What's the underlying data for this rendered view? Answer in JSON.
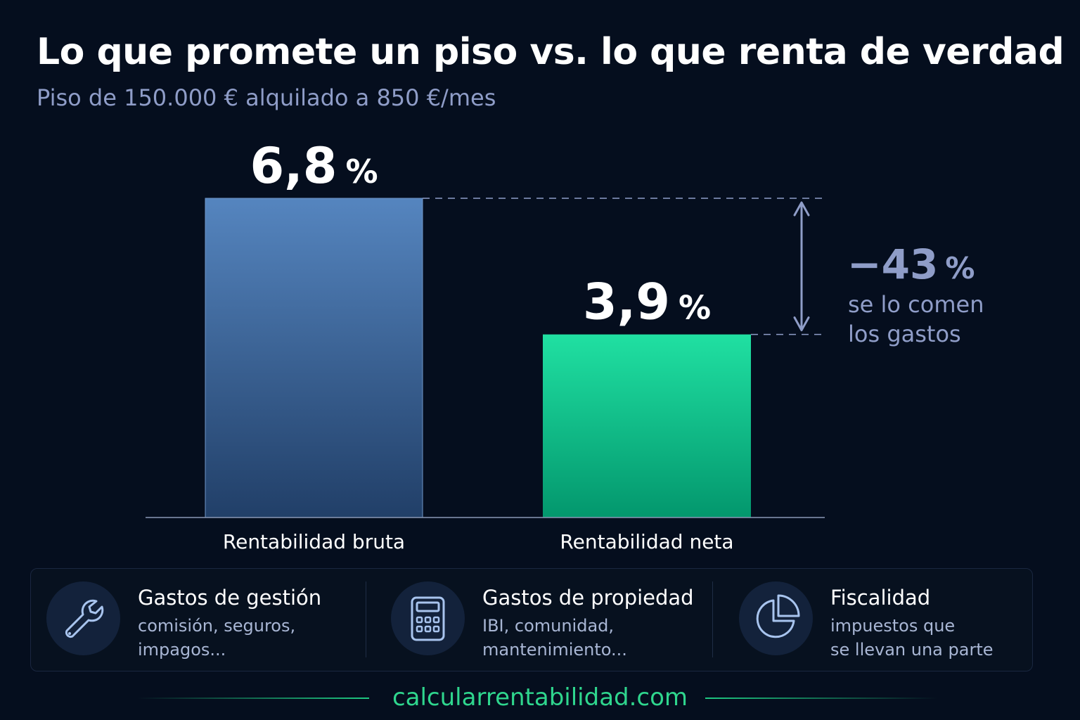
{
  "title": "Lo que promete un piso vs. lo que renta de verdad",
  "subtitle": "Piso de 150.000 € alquilado a 850 €/mes",
  "chart_data": {
    "type": "bar",
    "categories": [
      "Rentabilidad bruta",
      "Rentabilidad neta"
    ],
    "values": [
      6.8,
      3.9
    ],
    "value_labels": [
      "6,8",
      "3,9"
    ],
    "unit": "%",
    "colors": [
      "#4a78b0",
      "#1ed79a"
    ],
    "ylim": [
      0,
      6.8
    ],
    "grid": false,
    "annotation": {
      "value": "−43",
      "unit": "%",
      "text_line1": "se lo comen",
      "text_line2": "los gastos",
      "color": "#8f9dc8"
    }
  },
  "cards": [
    {
      "title": "Gastos de gestión",
      "desc_line1": "comisión, seguros,",
      "desc_line2": "impagos...",
      "icon": "wrench-icon"
    },
    {
      "title": "Gastos de propiedad",
      "desc_line1": "IBI, comunidad,",
      "desc_line2": "mantenimiento...",
      "icon": "calculator-icon"
    },
    {
      "title": "Fiscalidad",
      "desc_line1": "impuestos que",
      "desc_line2": "se llevan una parte",
      "icon": "pie-chart-icon"
    }
  ],
  "footer": "calcularrentabilidad.com"
}
